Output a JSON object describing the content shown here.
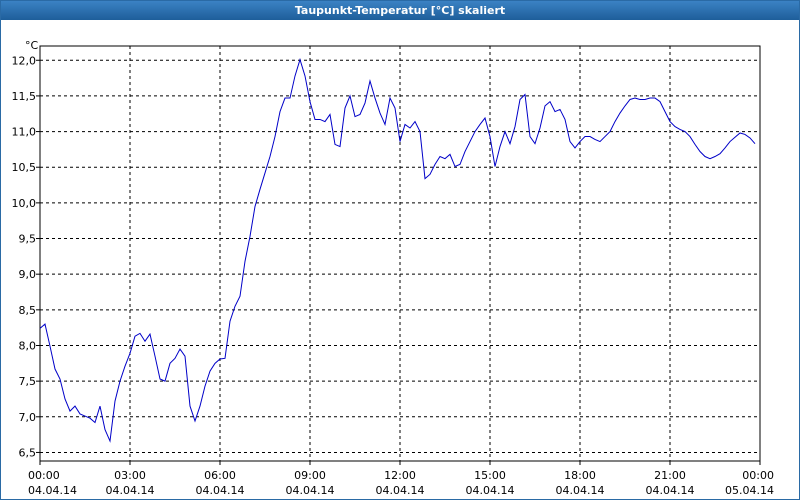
{
  "chart_data": {
    "type": "line",
    "title": "Taupunkt-Temperatur [°C] skaliert",
    "y_unit": "°C",
    "x": [
      0,
      10,
      20,
      30,
      40,
      50,
      60,
      70,
      80,
      90,
      100,
      110,
      120,
      130,
      140,
      150,
      160,
      170,
      180,
      190,
      200,
      210,
      220,
      230,
      240,
      250,
      260,
      270,
      280,
      290,
      300,
      310,
      320,
      330,
      340,
      350,
      360,
      370,
      380,
      390,
      400,
      410,
      420,
      430,
      440,
      450,
      460,
      470,
      480,
      490,
      500,
      510,
      520,
      530,
      540,
      550,
      560,
      570,
      580,
      590,
      600,
      610,
      620,
      630,
      640,
      650,
      660,
      670,
      680,
      690,
      700,
      710,
      720,
      730,
      740,
      750,
      760,
      770,
      780,
      790,
      800,
      810,
      820,
      830,
      840,
      850,
      860,
      870,
      880,
      890,
      900,
      910,
      920,
      930,
      940,
      950,
      960,
      970,
      980,
      990,
      1000,
      1010,
      1020,
      1030,
      1040,
      1050,
      1060,
      1070,
      1080,
      1090,
      1100,
      1110,
      1120,
      1130,
      1140,
      1150,
      1160,
      1170,
      1180,
      1190,
      1200,
      1210,
      1220,
      1230,
      1240,
      1250,
      1260,
      1270,
      1280,
      1290,
      1300,
      1310,
      1320,
      1330,
      1340,
      1350,
      1360,
      1370,
      1380,
      1390,
      1400,
      1410,
      1420,
      1430
    ],
    "series": [
      {
        "name": "Taupunkt",
        "color": "#0000c8",
        "values": [
          8.24,
          8.3,
          7.99,
          7.67,
          7.53,
          7.25,
          7.08,
          7.15,
          7.04,
          7.01,
          6.98,
          6.92,
          7.15,
          6.82,
          6.66,
          7.22,
          7.5,
          7.71,
          7.89,
          8.13,
          8.17,
          8.06,
          8.16,
          7.85,
          7.53,
          7.5,
          7.75,
          7.82,
          7.95,
          7.85,
          7.15,
          6.94,
          7.15,
          7.43,
          7.64,
          7.75,
          7.81,
          7.82,
          8.34,
          8.55,
          8.69,
          9.18,
          9.53,
          9.95,
          10.19,
          10.42,
          10.65,
          10.93,
          11.28,
          11.47,
          11.47,
          11.78,
          12.01,
          11.78,
          11.42,
          11.17,
          11.17,
          11.14,
          11.24,
          10.82,
          10.79,
          11.33,
          11.5,
          11.21,
          11.24,
          11.4,
          11.71,
          11.47,
          11.26,
          11.1,
          11.47,
          11.33,
          10.86,
          11.1,
          11.05,
          11.14,
          11.0,
          10.34,
          10.4,
          10.54,
          10.65,
          10.62,
          10.68,
          10.51,
          10.54,
          10.72,
          10.86,
          11.0,
          11.1,
          11.19,
          10.93,
          10.51,
          10.79,
          11.0,
          10.83,
          11.07,
          11.45,
          11.52,
          10.93,
          10.83,
          11.05,
          11.36,
          11.42,
          11.28,
          11.31,
          11.17,
          10.86,
          10.77,
          10.86,
          10.93,
          10.93,
          10.89,
          10.86,
          10.93,
          11.0,
          11.14,
          11.26,
          11.36,
          11.45,
          11.47,
          11.45,
          11.45,
          11.47,
          11.47,
          11.42,
          11.28,
          11.14,
          11.07,
          11.03,
          11.0,
          10.93,
          10.82,
          10.72,
          10.65,
          10.62,
          10.65,
          10.69,
          10.77,
          10.86,
          10.92,
          10.98,
          10.96,
          10.91,
          10.83
        ]
      }
    ],
    "xlim": [
      0,
      1440
    ],
    "xticks": [
      {
        "value": 0,
        "label": "00:00"
      },
      {
        "value": 180,
        "label": "03:00"
      },
      {
        "value": 360,
        "label": "06:00"
      },
      {
        "value": 540,
        "label": "09:00"
      },
      {
        "value": 720,
        "label": "12:00"
      },
      {
        "value": 900,
        "label": "15:00"
      },
      {
        "value": 1080,
        "label": "18:00"
      },
      {
        "value": 1260,
        "label": "21:00"
      },
      {
        "value": 1440,
        "label": "00:00"
      }
    ],
    "xtick_dates": [
      "04.04.14",
      "04.04.14",
      "04.04.14",
      "04.04.14",
      "04.04.14",
      "04.04.14",
      "04.04.14",
      "04.04.14",
      "05.04.14"
    ],
    "ylim": [
      6.38,
      12.2
    ],
    "yticks": [
      {
        "value": 6.5,
        "label": "6,5"
      },
      {
        "value": 7,
        "label": "7,0"
      },
      {
        "value": 7.5,
        "label": "7,5"
      },
      {
        "value": 8,
        "label": "8,0"
      },
      {
        "value": 8.5,
        "label": "8,5"
      },
      {
        "value": 9,
        "label": "9,0"
      },
      {
        "value": 9.5,
        "label": "9,5"
      },
      {
        "value": 10,
        "label": "10,0"
      },
      {
        "value": 10.5,
        "label": "10,5"
      },
      {
        "value": 11,
        "label": "11,0"
      },
      {
        "value": 11.5,
        "label": "11,5"
      },
      {
        "value": 12,
        "label": "12,0"
      }
    ],
    "grid": true
  }
}
